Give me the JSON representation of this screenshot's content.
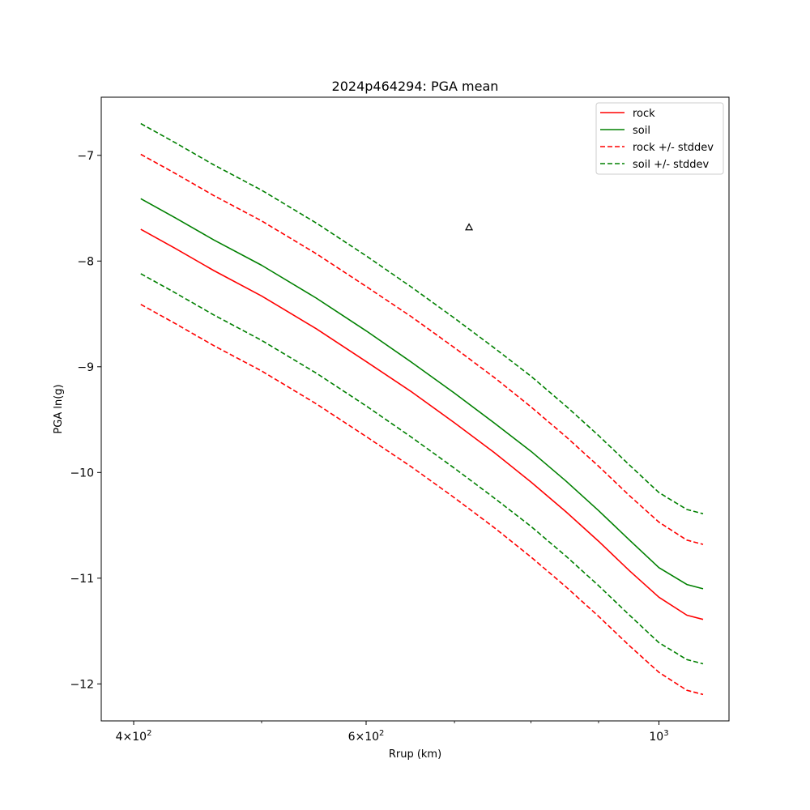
{
  "chart_data": {
    "type": "line",
    "title": "2024p464294: PGA mean",
    "xlabel": "Rrup (km)",
    "ylabel": "PGA ln(g)",
    "xscale": "log",
    "xlim": [
      378,
      1130
    ],
    "ylim": [
      -12.35,
      -6.45
    ],
    "x_ticks": [
      {
        "value": 400,
        "mantissa": "4",
        "exponent": "2"
      },
      {
        "value": 600,
        "mantissa": "6",
        "exponent": "2"
      },
      {
        "value": 1000,
        "mantissa": "",
        "exponent": "3"
      }
    ],
    "x_minor_ticks": [
      500,
      700,
      800,
      900
    ],
    "y_ticks": [
      {
        "value": -7,
        "label": "−7"
      },
      {
        "value": -8,
        "label": "−8"
      },
      {
        "value": -9,
        "label": "−9"
      },
      {
        "value": -10,
        "label": "−10"
      },
      {
        "value": -11,
        "label": "−11"
      },
      {
        "value": -12,
        "label": "−12"
      }
    ],
    "x": [
      405,
      430,
      460,
      500,
      550,
      600,
      650,
      700,
      750,
      800,
      850,
      900,
      950,
      1000,
      1050,
      1080
    ],
    "series": [
      {
        "name": "rock",
        "color": "#ff0000",
        "dash": "solid",
        "show_in_legend": true,
        "values": [
          -7.7,
          -7.88,
          -8.09,
          -8.33,
          -8.64,
          -8.95,
          -9.24,
          -9.53,
          -9.81,
          -10.09,
          -10.37,
          -10.65,
          -10.93,
          -11.18,
          -11.35,
          -11.39
        ]
      },
      {
        "name": "soil",
        "color": "#008000",
        "dash": "solid",
        "show_in_legend": true,
        "values": [
          -7.41,
          -7.59,
          -7.8,
          -8.04,
          -8.35,
          -8.66,
          -8.96,
          -9.25,
          -9.53,
          -9.8,
          -10.08,
          -10.36,
          -10.64,
          -10.9,
          -11.06,
          -11.1
        ]
      },
      {
        "name": "rock +/- stddev",
        "color": "#ff0000",
        "dash": "dashed",
        "show_in_legend": true,
        "values": [
          -6.99,
          -7.17,
          -7.38,
          -7.62,
          -7.93,
          -8.24,
          -8.53,
          -8.82,
          -9.1,
          -9.38,
          -9.66,
          -9.94,
          -10.22,
          -10.47,
          -10.64,
          -10.68
        ]
      },
      {
        "name": "",
        "color": "#ff0000",
        "dash": "dashed",
        "show_in_legend": false,
        "values": [
          -8.41,
          -8.59,
          -8.8,
          -9.04,
          -9.35,
          -9.66,
          -9.95,
          -10.24,
          -10.52,
          -10.8,
          -11.08,
          -11.36,
          -11.64,
          -11.89,
          -12.06,
          -12.1
        ]
      },
      {
        "name": "soil +/- stddev",
        "color": "#008000",
        "dash": "dashed",
        "show_in_legend": true,
        "values": [
          -6.7,
          -6.88,
          -7.09,
          -7.33,
          -7.64,
          -7.95,
          -8.25,
          -8.54,
          -8.82,
          -9.09,
          -9.37,
          -9.65,
          -9.93,
          -10.19,
          -10.35,
          -10.39
        ]
      },
      {
        "name": "",
        "color": "#008000",
        "dash": "dashed",
        "show_in_legend": false,
        "values": [
          -8.12,
          -8.3,
          -8.51,
          -8.75,
          -9.06,
          -9.37,
          -9.67,
          -9.96,
          -10.24,
          -10.51,
          -10.79,
          -11.07,
          -11.35,
          -11.61,
          -11.77,
          -11.81
        ]
      }
    ],
    "points": [
      {
        "x": 718,
        "y": -7.68,
        "marker": "triangle-open",
        "color": "#000000"
      }
    ],
    "legend_placement": "top-right",
    "grid": false
  }
}
